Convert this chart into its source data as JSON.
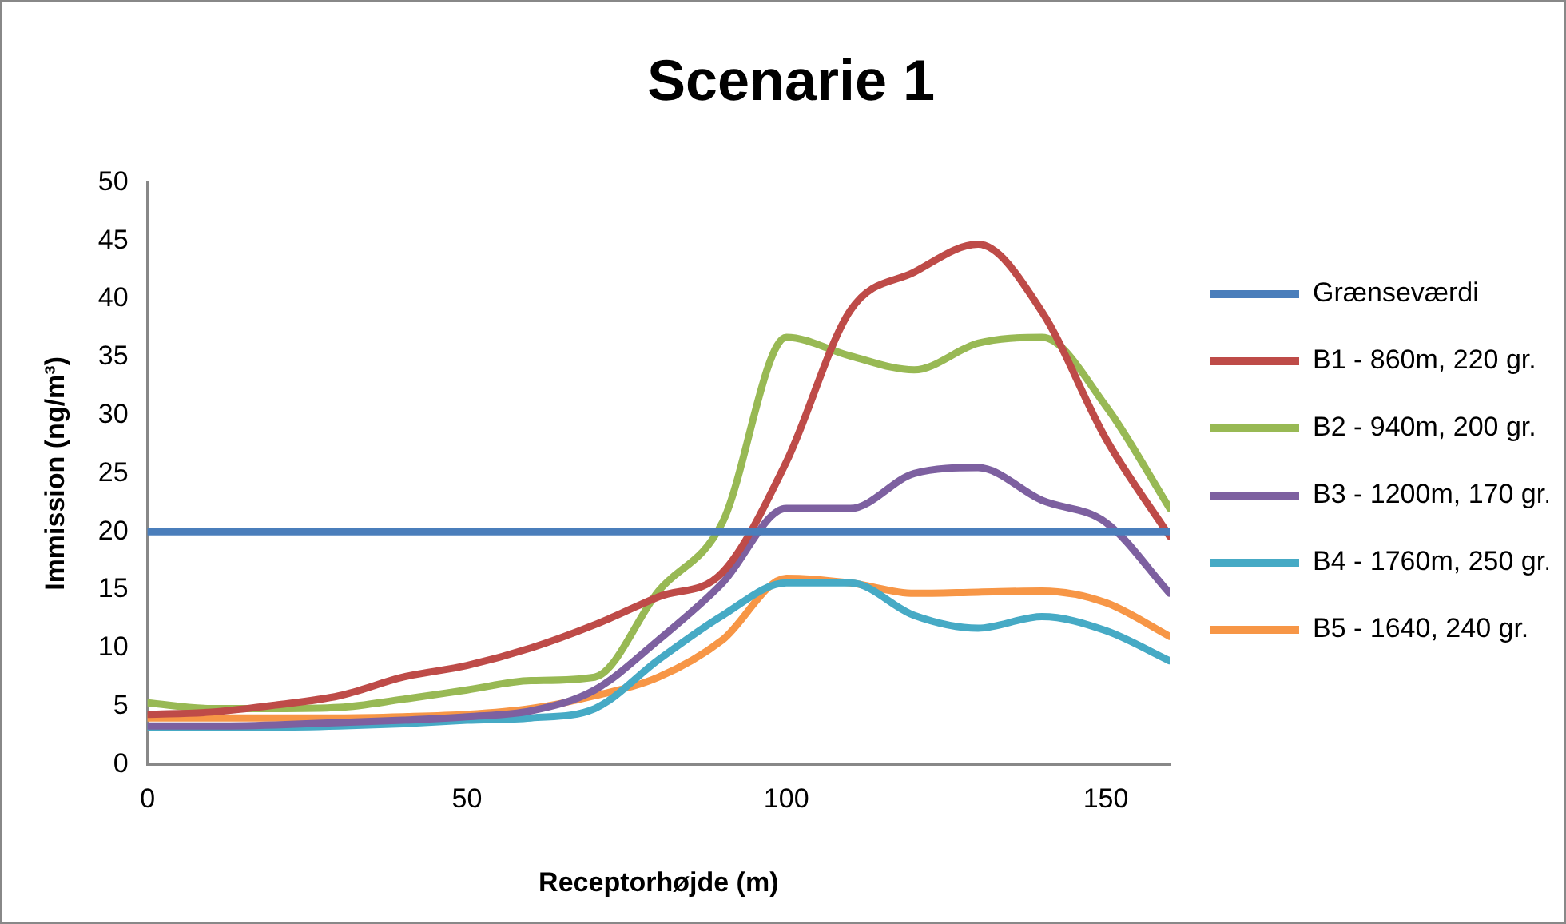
{
  "chart_data": {
    "type": "line",
    "title": "Scenarie 1",
    "xlabel": "Receptorhøjde (m)",
    "ylabel": "Immission (ng/m³)",
    "x": [
      0,
      10,
      20,
      30,
      40,
      50,
      60,
      70,
      80,
      90,
      100,
      110,
      120,
      130,
      140,
      150,
      160
    ],
    "xlim": [
      0,
      160
    ],
    "xticks": [
      0,
      50,
      100,
      150
    ],
    "ylim": [
      0,
      50
    ],
    "yticks": [
      0,
      5,
      10,
      15,
      20,
      25,
      30,
      35,
      40,
      45,
      50
    ],
    "grid": false,
    "legend": "right",
    "marker": "none",
    "line_style": "solid",
    "series": [
      {
        "name": "Grænseværdi",
        "color": "#4a7ebb",
        "values": [
          20,
          20,
          20,
          20,
          20,
          20,
          20,
          20,
          20,
          20,
          20,
          20,
          20,
          20,
          20,
          20,
          20
        ]
      },
      {
        "name": "B1 - 860m, 220 gr.",
        "color": "#be4b48",
        "values": [
          4.3,
          4.5,
          5.1,
          5.9,
          7.5,
          8.5,
          10,
          12,
          14.4,
          16.5,
          26,
          39,
          42.3,
          44.7,
          38.9,
          28,
          19.6
        ]
      },
      {
        "name": "B2 - 940m, 200 gr.",
        "color": "#98b954",
        "values": [
          5.3,
          4.8,
          4.8,
          4.9,
          5.6,
          6.4,
          7.2,
          7.5,
          14.9,
          20.8,
          36.7,
          35.1,
          33.9,
          36.2,
          36.7,
          30.8,
          22
        ]
      },
      {
        "name": "B3 - 1200m, 170 gr.",
        "color": "#7d60a0",
        "values": [
          3.3,
          3.3,
          3.4,
          3.6,
          3.8,
          4.1,
          4.6,
          6.4,
          10.7,
          15.6,
          22,
          22,
          25,
          25.5,
          22.7,
          20.8,
          14.7
        ]
      },
      {
        "name": "B4 - 1760m, 250 gr.",
        "color": "#46aac5",
        "values": [
          3.2,
          3.2,
          3.2,
          3.3,
          3.5,
          3.8,
          4,
          4.8,
          9,
          12.8,
          15.6,
          15.6,
          12.8,
          11.7,
          12.7,
          11.5,
          8.9
        ]
      },
      {
        "name": "B5 - 1640, 240 gr.",
        "color": "#f79646",
        "values": [
          4,
          4,
          4,
          4,
          4.1,
          4.3,
          4.8,
          5.9,
          7.5,
          10.7,
          16,
          15.6,
          14.7,
          14.8,
          14.9,
          13.9,
          11
        ]
      }
    ]
  }
}
